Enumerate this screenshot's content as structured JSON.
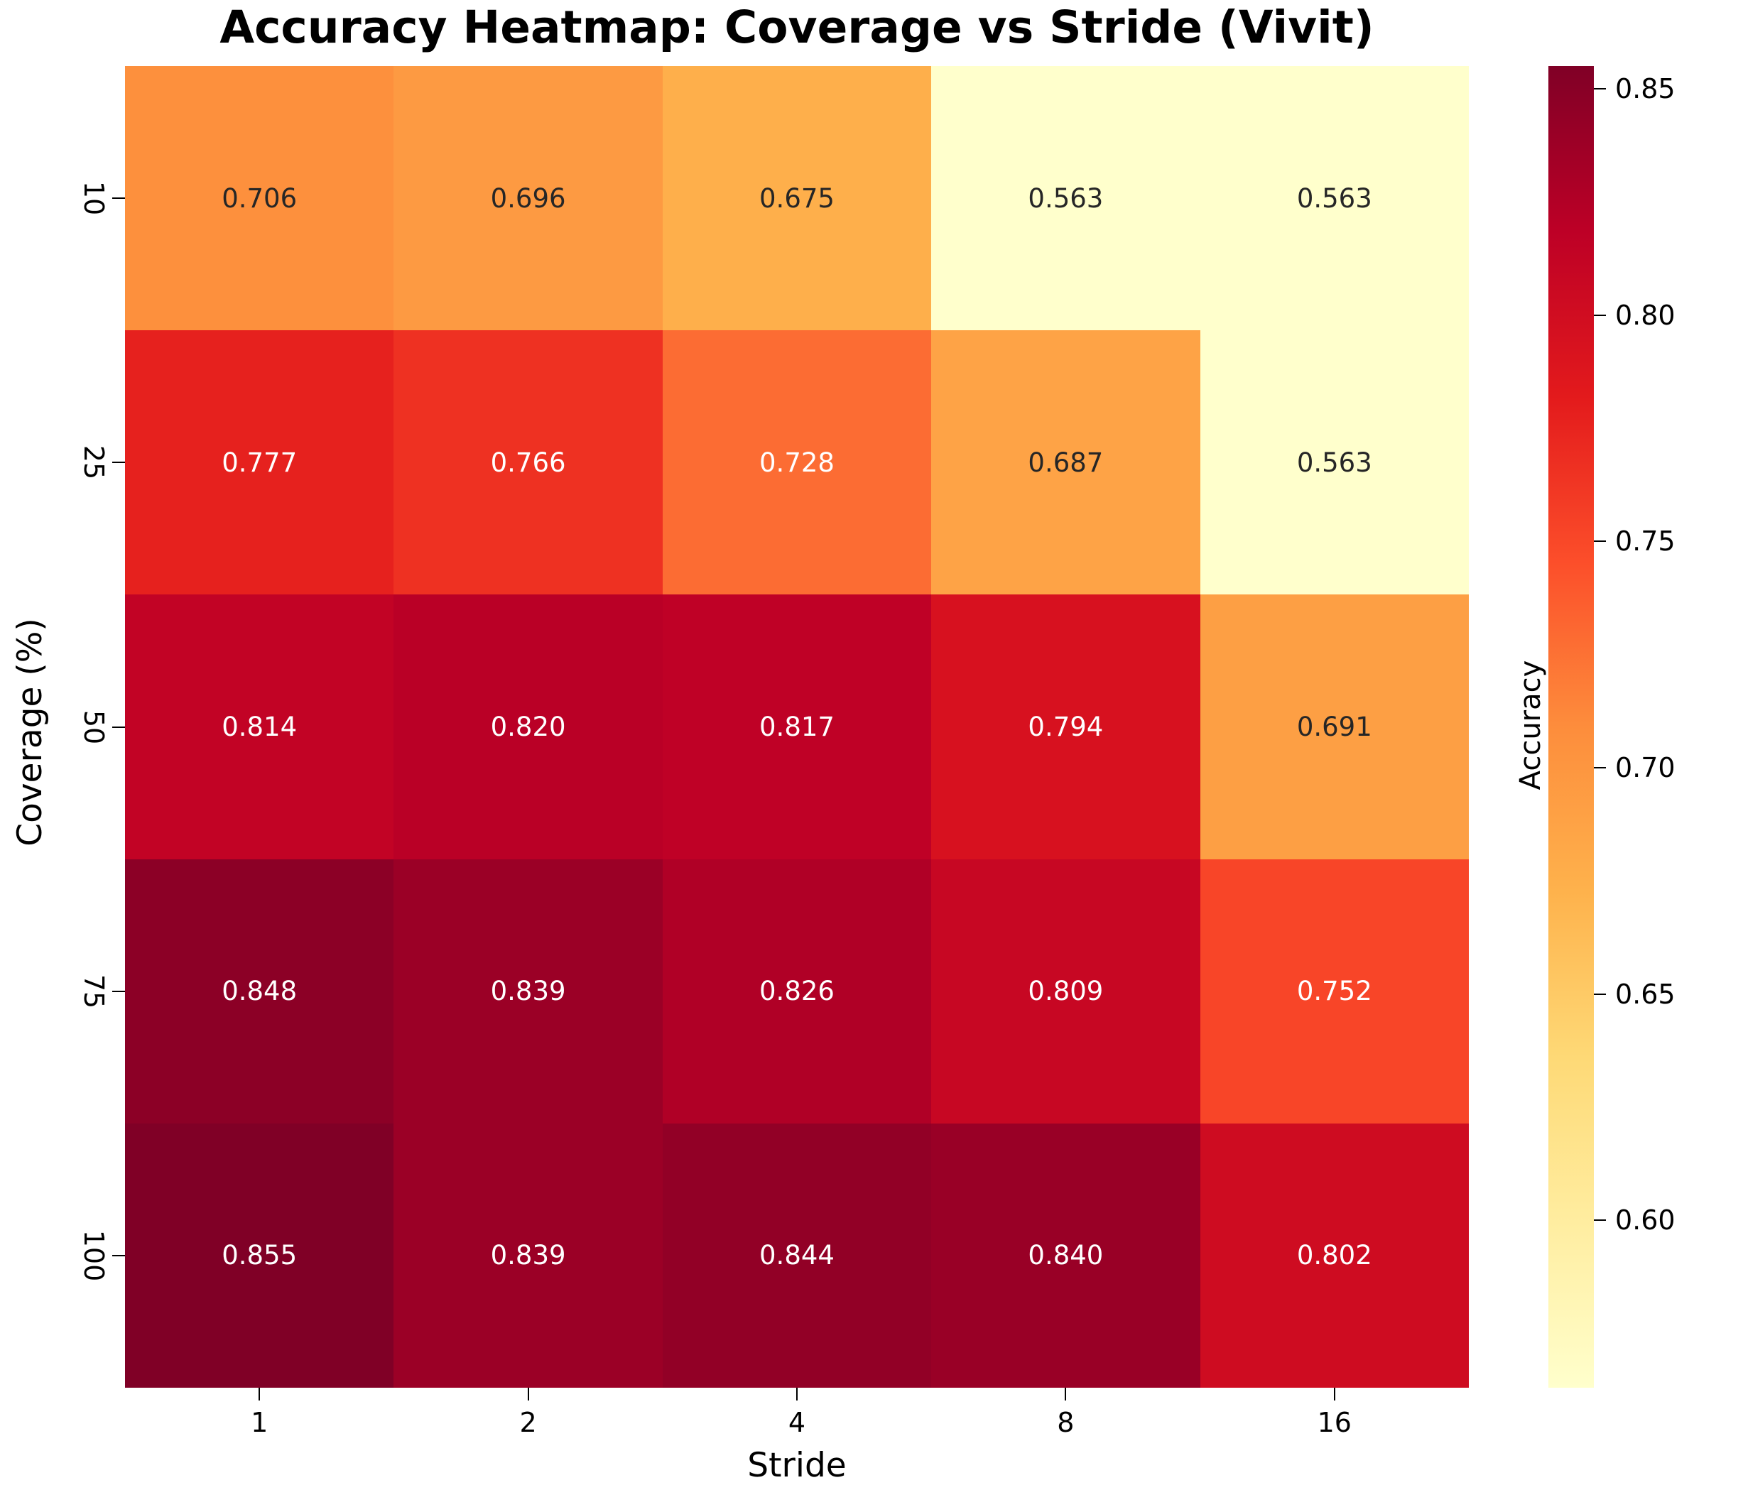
{
  "title": "Accuracy Heatmap: Coverage vs Stride (Vivit)",
  "chart_data": {
    "type": "heatmap",
    "title": "Accuracy Heatmap: Coverage vs Stride (Vivit)",
    "xlabel": "Stride",
    "ylabel": "Coverage (%)",
    "x_tick_labels": [
      "1",
      "2",
      "4",
      "8",
      "16"
    ],
    "y_tick_labels": [
      "10",
      "25",
      "50",
      "75",
      "100"
    ],
    "rows": [
      {
        "coverage": "10",
        "values": [
          0.706,
          0.696,
          0.675,
          0.563,
          0.563
        ]
      },
      {
        "coverage": "25",
        "values": [
          0.777,
          0.766,
          0.728,
          0.687,
          0.563
        ]
      },
      {
        "coverage": "50",
        "values": [
          0.814,
          0.82,
          0.817,
          0.794,
          0.691
        ]
      },
      {
        "coverage": "75",
        "values": [
          0.848,
          0.839,
          0.826,
          0.809,
          0.752
        ]
      },
      {
        "coverage": "100",
        "values": [
          0.855,
          0.839,
          0.844,
          0.84,
          0.802
        ]
      }
    ],
    "value_format_decimals": 3,
    "vmin": 0.563,
    "vmax": 0.855,
    "colorbar": {
      "label": "Accuracy",
      "tick_labels": [
        "0.85",
        "0.80",
        "0.75",
        "0.70",
        "0.65",
        "0.60"
      ]
    },
    "colormap": {
      "name": "YlOrRd",
      "anchors": [
        "#ffffcc",
        "#ffeda0",
        "#fed976",
        "#feb24c",
        "#fd8d3c",
        "#fc4e2a",
        "#e31a1c",
        "#bd0026",
        "#800026"
      ]
    },
    "annotation_text_colors": {
      "dark": "#262626",
      "light": "#ffffff"
    },
    "grid": false,
    "legend_position": "colorbar-right"
  }
}
